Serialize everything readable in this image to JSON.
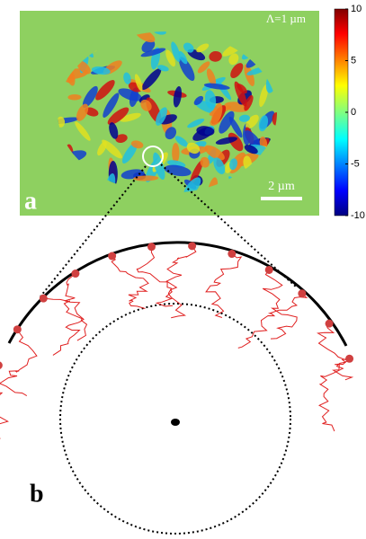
{
  "panel_a": {
    "label": "a",
    "annotation": "Λ=1 µm",
    "scale_bar": "2 µm",
    "colorbar": {
      "ticks": [
        10,
        5,
        0,
        -5,
        -10
      ]
    }
  },
  "panel_b": {
    "label": "b"
  }
}
